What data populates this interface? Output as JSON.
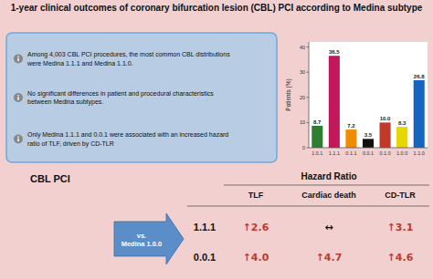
{
  "chart_data": {
    "type": "bar",
    "title": "1-year clinical outcomes of coronary bifurcation lesion (CBL) PCI according to Medina subtype",
    "categories": [
      "1.0.1",
      "1.1.1",
      "0.1.1",
      "0.0.1",
      "0.1.0",
      "1.0.0",
      "1.1.0"
    ],
    "values": [
      8.7,
      36.5,
      7.2,
      3.5,
      10.0,
      8.3,
      26.8
    ],
    "value_labels": [
      "8.7",
      "36.5",
      "7.2",
      "3.5",
      "10.0",
      "8.3",
      "26.8"
    ],
    "data_labels": true,
    "colors": [
      "#2e7d32",
      "#c2185b",
      "#ef8c00",
      "#111111",
      "#c0392b",
      "#e8d600",
      "#1565c0"
    ],
    "y_label": "Patients (%)",
    "ylim": [
      0,
      42
    ],
    "yticks": [
      0,
      10,
      20,
      30,
      40
    ],
    "grid": false,
    "annotations": {
      "bullets": [
        "Among 4,003 CBL PCI procedures, the most common CBL distributions\nwere Medina 1.1.1 and Medina 1.1.0.",
        "No significant differences in patient and procedural characteristics\nbetween Medina subtypes.",
        "Only Medina 1.1.1 and 0.0.1 were associated with an increased hazard\nratio of TLF, driven by CD-TLR"
      ],
      "label": "CBL PCI",
      "comparison": "vs.\nMedina 1.0.0",
      "table": {
        "title": "Hazard Ratio",
        "columns": [
          "TLF",
          "Cardiac death",
          "CD-TLR"
        ],
        "rows": [
          {
            "label": "1.1.1",
            "cells": [
              "↑2.6",
              "↔",
              "↑3.1"
            ],
            "colors": [
              "#c0392b",
              "#111111",
              "#c0392b"
            ]
          },
          {
            "label": "0.0.1",
            "cells": [
              "↑4.0",
              "↑4.7",
              "↑4.6"
            ],
            "colors": [
              "#c0392b",
              "#c0392b",
              "#c0392b"
            ]
          }
        ]
      }
    }
  }
}
